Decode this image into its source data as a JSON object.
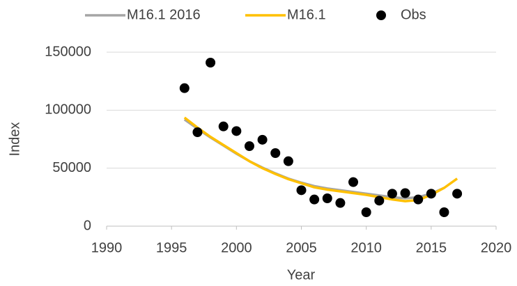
{
  "chart_data": {
    "type": "line",
    "x_label": "Year",
    "y_label": "Index",
    "x": [
      1996,
      1997,
      1998,
      1999,
      2000,
      2001,
      2002,
      2003,
      2004,
      2005,
      2006,
      2007,
      2008,
      2009,
      2010,
      2011,
      2012,
      2013,
      2014,
      2015,
      2016,
      2017
    ],
    "series": [
      {
        "name": "M16.1 2016",
        "color": "#a5a5a5",
        "style": "line",
        "values": [
          92000,
          84000,
          76500,
          69500,
          62500,
          56000,
          50500,
          45500,
          41000,
          37500,
          34500,
          32500,
          31000,
          29500,
          28000,
          26500,
          25000,
          24000,
          25000,
          28000,
          33000,
          null
        ]
      },
      {
        "name": "M16.1",
        "color": "#ffc000",
        "style": "line",
        "values": [
          93600,
          85000,
          77000,
          70000,
          63000,
          56000,
          50000,
          45000,
          40500,
          37000,
          33500,
          31500,
          30000,
          28500,
          27000,
          25000,
          23000,
          21500,
          22500,
          27000,
          33000,
          41000
        ]
      },
      {
        "name": "Obs",
        "color": "#000000",
        "style": "marker",
        "values": [
          119000,
          81000,
          141000,
          86000,
          82000,
          69000,
          74500,
          63000,
          56000,
          31000,
          23000,
          24000,
          20000,
          38000,
          12000,
          22000,
          28000,
          28500,
          23000,
          28000,
          12000,
          28000
        ]
      }
    ],
    "xlim": [
      1990,
      2020
    ],
    "xticks": [
      1990,
      1995,
      2000,
      2005,
      2010,
      2015,
      2020
    ],
    "ylim": [
      0,
      150000
    ],
    "yticks": [
      0,
      50000,
      100000,
      150000
    ],
    "grid": true,
    "legend": "top"
  }
}
